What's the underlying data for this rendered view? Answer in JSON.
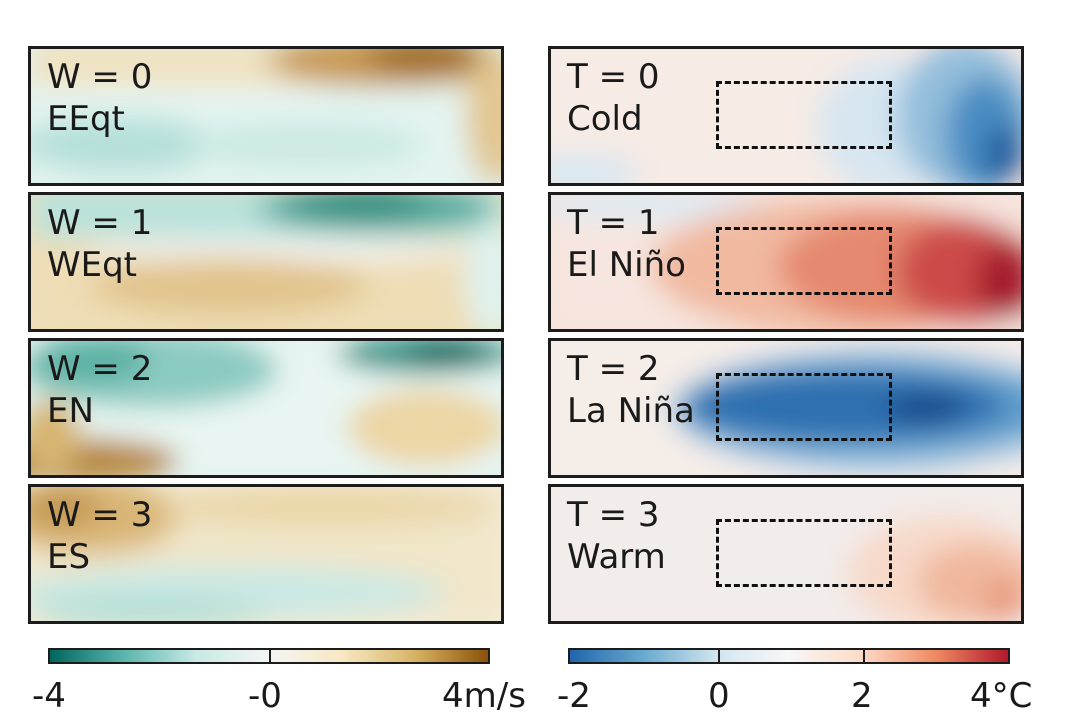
{
  "left_panels": [
    {
      "code": "W = 0",
      "name": "EEqt"
    },
    {
      "code": "W = 1",
      "name": "WEqt"
    },
    {
      "code": "W = 2",
      "name": "EN"
    },
    {
      "code": "W = 3",
      "name": "ES"
    }
  ],
  "right_panels": [
    {
      "code": "T = 0",
      "name": "Cold"
    },
    {
      "code": "T = 1",
      "name": "El Niño"
    },
    {
      "code": "T = 2",
      "name": "La Niña"
    },
    {
      "code": "T = 3",
      "name": "Warm"
    }
  ],
  "wind_colorbar": {
    "ticks": [
      "-4",
      "-0",
      "4m/s"
    ],
    "colors": [
      "#01665e",
      "#5ab4ac",
      "#c7eae5",
      "#f5f5f5",
      "#f6e8c3",
      "#d8b365",
      "#8c510a"
    ]
  },
  "temp_colorbar": {
    "ticks": [
      "-2",
      "0",
      "2",
      "4°C"
    ],
    "colors": [
      "#2166ac",
      "#67a9cf",
      "#d1e5f0",
      "#f7f7f7",
      "#fddbc7",
      "#ef8a62",
      "#b2182b"
    ]
  }
}
